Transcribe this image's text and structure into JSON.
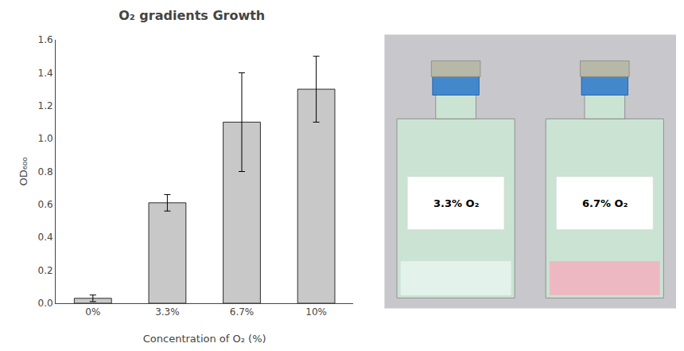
{
  "chart_data": {
    "type": "bar",
    "title": "O₂ gradients Growth",
    "xlabel": "Concentration of O₂ (%)",
    "ylabel": "OD₆₀₀",
    "categories": [
      "0%",
      "3.3%",
      "6.7%",
      "10%"
    ],
    "values": [
      0.03,
      0.61,
      1.1,
      1.3
    ],
    "errors": [
      0.02,
      0.05,
      0.3,
      0.2
    ],
    "color": "#c8c8c8",
    "ylim": [
      0,
      1.6
    ],
    "yticks": [
      {
        "value": 0.0,
        "label": "0.0"
      },
      0.2,
      0.4,
      0.6,
      0.8,
      {
        "value": 1.0,
        "label": "1.0"
      },
      1.2,
      1.4,
      1.6
    ],
    "grid": false,
    "annotations": [
      "3.3% O₂",
      "6.7% O₂"
    ]
  }
}
